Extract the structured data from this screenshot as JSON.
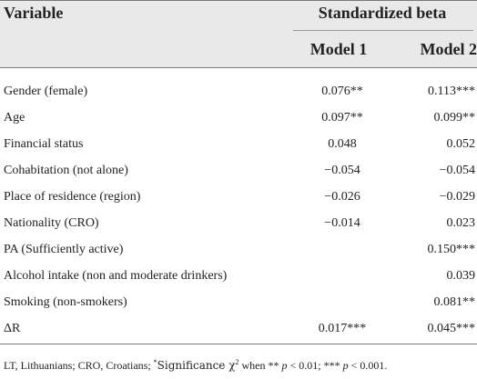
{
  "table": {
    "header": {
      "variable": "Variable",
      "group": "Standardized beta",
      "model1": "Model 1",
      "model2": "Model 2"
    },
    "rows": [
      {
        "label": "Gender (female)",
        "model1": "0.076**",
        "model2": "0.113***"
      },
      {
        "label": "Age",
        "model1": "0.097**",
        "model2": "0.099**"
      },
      {
        "label": "Financial status",
        "model1": "0.048",
        "model2": "0.052"
      },
      {
        "label": "Cohabitation (not alone)",
        "model1": "−0.054",
        "model2": "−0.054"
      },
      {
        "label": "Place of residence (region)",
        "model1": "−0.026",
        "model2": "−0.029"
      },
      {
        "label": "Nationality (CRO)",
        "model1": "−0.014",
        "model2": "0.023"
      },
      {
        "label": "PA (Sufficiently active)",
        "model1": "",
        "model2": "0.150***"
      },
      {
        "label": "Alcohol intake (non and moderate drinkers)",
        "model1": "",
        "model2": "0.039"
      },
      {
        "label": "Smoking (non-smokers)",
        "model1": "",
        "model2": "0.081**"
      },
      {
        "label": "ΔR",
        "model1": "0.017***",
        "model2": "0.045***"
      }
    ]
  },
  "footnote": {
    "prefix": "LT, Lithuanians; CRO, Croatians; ",
    "star": "*",
    "significance": "Significance χ",
    "sq": "2",
    "when": " when ** ",
    "p1": "p",
    "cond1": " < 0.01; *** ",
    "p2": "p",
    "cond2": " < 0.001."
  }
}
